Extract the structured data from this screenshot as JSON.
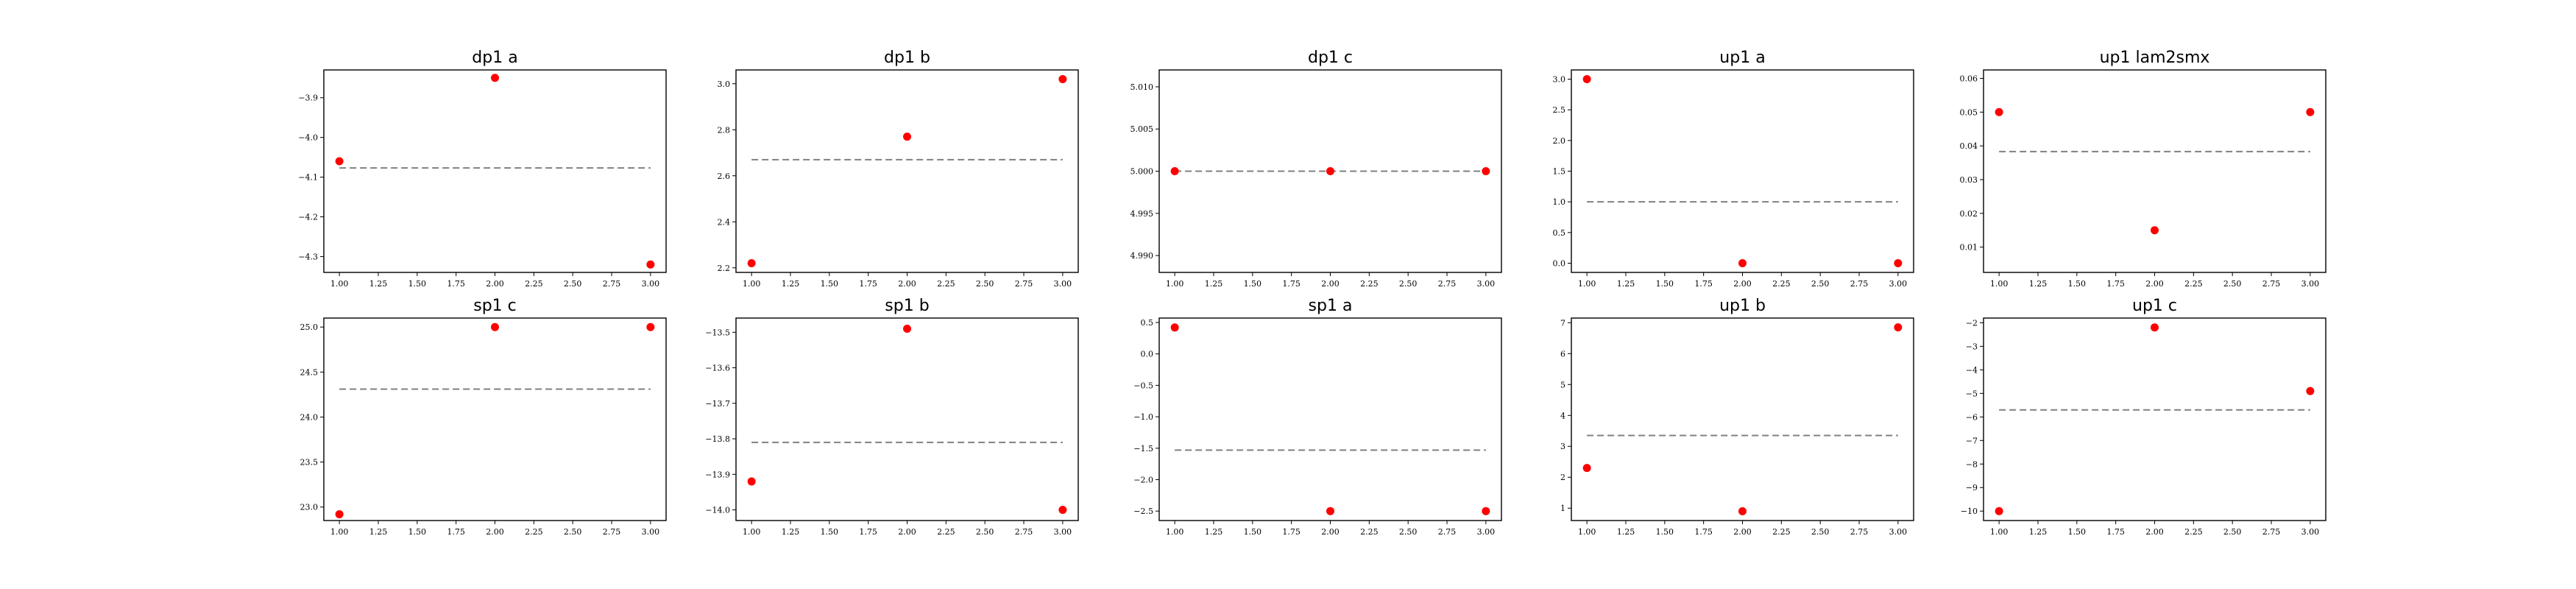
{
  "colors": {
    "points": "#ff0000",
    "mean_line": "#808080",
    "frame": "#000000",
    "background": "#ffffff"
  },
  "chart_data": [
    {
      "type": "scatter",
      "title": "dp1 a",
      "x": [
        1,
        2,
        3
      ],
      "y": [
        -4.06,
        -3.85,
        -4.32
      ],
      "mean_line": -4.077,
      "mean_line_style": "dashed",
      "xlim": [
        0.9,
        3.1
      ],
      "ylim": [
        -4.34,
        -3.83
      ],
      "xticks": [
        "1.00",
        "1.25",
        "1.50",
        "1.75",
        "2.00",
        "2.25",
        "2.50",
        "2.75",
        "3.00"
      ],
      "yticks": [
        -3.9,
        -4.0,
        -4.1,
        -4.2,
        -4.3
      ],
      "ytick_labels": [
        "−3.9",
        "−4.0",
        "−4.1",
        "−4.2",
        "−4.3"
      ],
      "grid": false
    },
    {
      "type": "scatter",
      "title": "dp1 b",
      "x": [
        1,
        2,
        3
      ],
      "y": [
        2.22,
        2.77,
        3.02
      ],
      "mean_line": 2.67,
      "mean_line_style": "dashed",
      "xlim": [
        0.9,
        3.1
      ],
      "ylim": [
        2.18,
        3.06
      ],
      "xticks": [
        "1.00",
        "1.25",
        "1.50",
        "1.75",
        "2.00",
        "2.25",
        "2.50",
        "2.75",
        "3.00"
      ],
      "yticks": [
        2.2,
        2.4,
        2.6,
        2.8,
        3.0
      ],
      "ytick_labels": [
        "2.2",
        "2.4",
        "2.6",
        "2.8",
        "3.0"
      ],
      "grid": false
    },
    {
      "type": "scatter",
      "title": "dp1 c",
      "x": [
        1,
        2,
        3
      ],
      "y": [
        5.0,
        5.0,
        5.0
      ],
      "mean_line": 5.0,
      "mean_line_style": "dashed",
      "xlim": [
        0.9,
        3.1
      ],
      "ylim": [
        4.988,
        5.012
      ],
      "xticks": [
        "1.00",
        "1.25",
        "1.50",
        "1.75",
        "2.00",
        "2.25",
        "2.50",
        "2.75",
        "3.00"
      ],
      "yticks": [
        4.99,
        4.995,
        5.0,
        5.005,
        5.01
      ],
      "ytick_labels": [
        "4.990",
        "4.995",
        "5.000",
        "5.005",
        "5.010"
      ],
      "grid": false
    },
    {
      "type": "scatter",
      "title": "up1 a",
      "x": [
        1,
        2,
        3
      ],
      "y": [
        3.0,
        0.0,
        0.0
      ],
      "mean_line": 1.0,
      "mean_line_style": "dashed",
      "xlim": [
        0.9,
        3.1
      ],
      "ylim": [
        -0.15,
        3.15
      ],
      "xticks": [
        "1.00",
        "1.25",
        "1.50",
        "1.75",
        "2.00",
        "2.25",
        "2.50",
        "2.75",
        "3.00"
      ],
      "yticks": [
        0,
        0.5,
        1,
        1.5,
        2,
        2.5,
        3
      ],
      "ytick_labels": [
        "0.0",
        "0.5",
        "1.0",
        "1.5",
        "2.0",
        "2.5",
        "3.0"
      ],
      "grid": false
    },
    {
      "type": "scatter",
      "title": "up1 lam2smx",
      "x": [
        1,
        2,
        3
      ],
      "y": [
        0.05,
        0.015,
        0.05
      ],
      "mean_line": 0.0383,
      "mean_line_style": "dashed",
      "xlim": [
        0.9,
        3.1
      ],
      "ylim": [
        0.0025,
        0.0625
      ],
      "xticks": [
        "1.00",
        "1.25",
        "1.50",
        "1.75",
        "2.00",
        "2.25",
        "2.50",
        "2.75",
        "3.00"
      ],
      "yticks": [
        0.01,
        0.02,
        0.03,
        0.04,
        0.05,
        0.06
      ],
      "ytick_labels": [
        "0.01",
        "0.02",
        "0.03",
        "0.04",
        "0.05",
        "0.06"
      ],
      "grid": false
    },
    {
      "type": "scatter",
      "title": "sp1 c",
      "x": [
        1,
        2,
        3
      ],
      "y": [
        22.92,
        25.0,
        25.0
      ],
      "mean_line": 24.31,
      "mean_line_style": "dashed",
      "xlim": [
        0.9,
        3.1
      ],
      "ylim": [
        22.85,
        25.1
      ],
      "xticks": [
        "1.00",
        "1.25",
        "1.50",
        "1.75",
        "2.00",
        "2.25",
        "2.50",
        "2.75",
        "3.00"
      ],
      "yticks": [
        23.0,
        23.5,
        24.0,
        24.5,
        25.0
      ],
      "ytick_labels": [
        "23.0",
        "23.5",
        "24.0",
        "24.5",
        "25.0"
      ],
      "grid": false
    },
    {
      "type": "scatter",
      "title": "sp1 b",
      "x": [
        1,
        2,
        3
      ],
      "y": [
        -13.92,
        -13.49,
        -14.0
      ],
      "mean_line": -13.81,
      "mean_line_style": "dashed",
      "xlim": [
        0.9,
        3.1
      ],
      "ylim": [
        -14.03,
        -13.46
      ],
      "xticks": [
        "1.00",
        "1.25",
        "1.50",
        "1.75",
        "2.00",
        "2.25",
        "2.50",
        "2.75",
        "3.00"
      ],
      "yticks": [
        -13.5,
        -13.6,
        -13.7,
        -13.8,
        -13.9,
        -14.0
      ],
      "ytick_labels": [
        "−13.5",
        "−13.6",
        "−13.7",
        "−13.8",
        "−13.9",
        "−14.0"
      ],
      "grid": false
    },
    {
      "type": "scatter",
      "title": "sp1 a",
      "x": [
        1,
        2,
        3
      ],
      "y": [
        0.42,
        -2.5,
        -2.5
      ],
      "mean_line": -1.53,
      "mean_line_style": "dashed",
      "xlim": [
        0.9,
        3.1
      ],
      "ylim": [
        -2.65,
        0.57
      ],
      "xticks": [
        "1.00",
        "1.25",
        "1.50",
        "1.75",
        "2.00",
        "2.25",
        "2.50",
        "2.75",
        "3.00"
      ],
      "yticks": [
        0.5,
        0,
        -0.5,
        -1,
        -1.5,
        -2,
        -2.5
      ],
      "ytick_labels": [
        "0.5",
        "0.0",
        "−0.5",
        "−1.0",
        "−1.5",
        "−2.0",
        "−2.5"
      ],
      "grid": false
    },
    {
      "type": "scatter",
      "title": "up1 b",
      "x": [
        1,
        2,
        3
      ],
      "y": [
        2.3,
        0.9,
        6.85
      ],
      "mean_line": 3.35,
      "mean_line_style": "dashed",
      "xlim": [
        0.9,
        3.1
      ],
      "ylim": [
        0.6,
        7.15
      ],
      "xticks": [
        "1.00",
        "1.25",
        "1.50",
        "1.75",
        "2.00",
        "2.25",
        "2.50",
        "2.75",
        "3.00"
      ],
      "yticks": [
        1,
        2,
        3,
        4,
        5,
        6,
        7
      ],
      "ytick_labels": [
        "1",
        "2",
        "3",
        "4",
        "5",
        "6",
        "7"
      ],
      "grid": false
    },
    {
      "type": "scatter",
      "title": "up1 c",
      "x": [
        1,
        2,
        3
      ],
      "y": [
        -10.0,
        -2.2,
        -4.9
      ],
      "mean_line": -5.7,
      "mean_line_style": "dashed",
      "xlim": [
        0.9,
        3.1
      ],
      "ylim": [
        -10.4,
        -1.8
      ],
      "xticks": [
        "1.00",
        "1.25",
        "1.50",
        "1.75",
        "2.00",
        "2.25",
        "2.50",
        "2.75",
        "3.00"
      ],
      "yticks": [
        -2,
        -3,
        -4,
        -5,
        -6,
        -7,
        -8,
        -9,
        -10
      ],
      "ytick_labels": [
        "−2",
        "−3",
        "−4",
        "−5",
        "−6",
        "−7",
        "−8",
        "−9",
        "−10"
      ],
      "grid": false
    }
  ]
}
